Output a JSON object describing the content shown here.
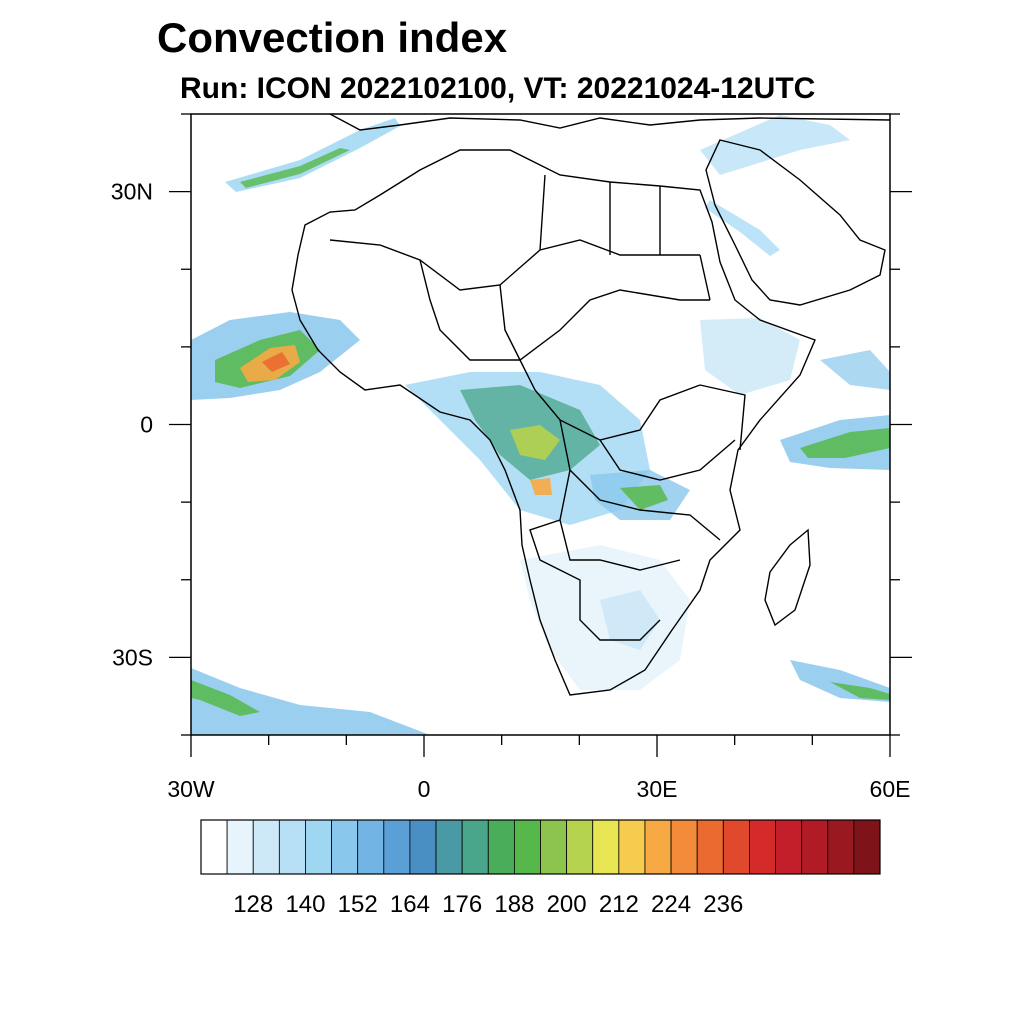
{
  "title": "Convection index",
  "subtitle": "Run: ICON 2022102100,  VT: 20221024-12UTC",
  "map": {
    "lon_range": [
      -30,
      60
    ],
    "lat_range": [
      -40,
      40
    ],
    "x_ticks": [
      {
        "lon": -30,
        "label": "30W"
      },
      {
        "lon": 0,
        "label": "0"
      },
      {
        "lon": 30,
        "label": "30E"
      },
      {
        "lon": 60,
        "label": "60E"
      }
    ],
    "y_ticks": [
      {
        "lat": 30,
        "label": "30N"
      },
      {
        "lat": 0,
        "label": "0"
      },
      {
        "lat": -30,
        "label": "30S"
      }
    ]
  },
  "colorbar": {
    "colors": [
      "#ffffff",
      "#e8f4fb",
      "#cde8f7",
      "#b6dff5",
      "#9fd7f3",
      "#89c7ec",
      "#72b4e4",
      "#5a9fd6",
      "#4a8fc4",
      "#4a9aa6",
      "#4aa68a",
      "#49ad5a",
      "#56b84a",
      "#8cc44d",
      "#b5d24e",
      "#e8e552",
      "#f6cc4e",
      "#f7a944",
      "#f28c3a",
      "#ea6a30",
      "#e0492b",
      "#d42a2a",
      "#c21f2a",
      "#b01b26",
      "#9a1820",
      "#7e141a"
    ],
    "labels": [
      "128",
      "140",
      "152",
      "164",
      "176",
      "188",
      "200",
      "212",
      "224",
      "236"
    ]
  }
}
